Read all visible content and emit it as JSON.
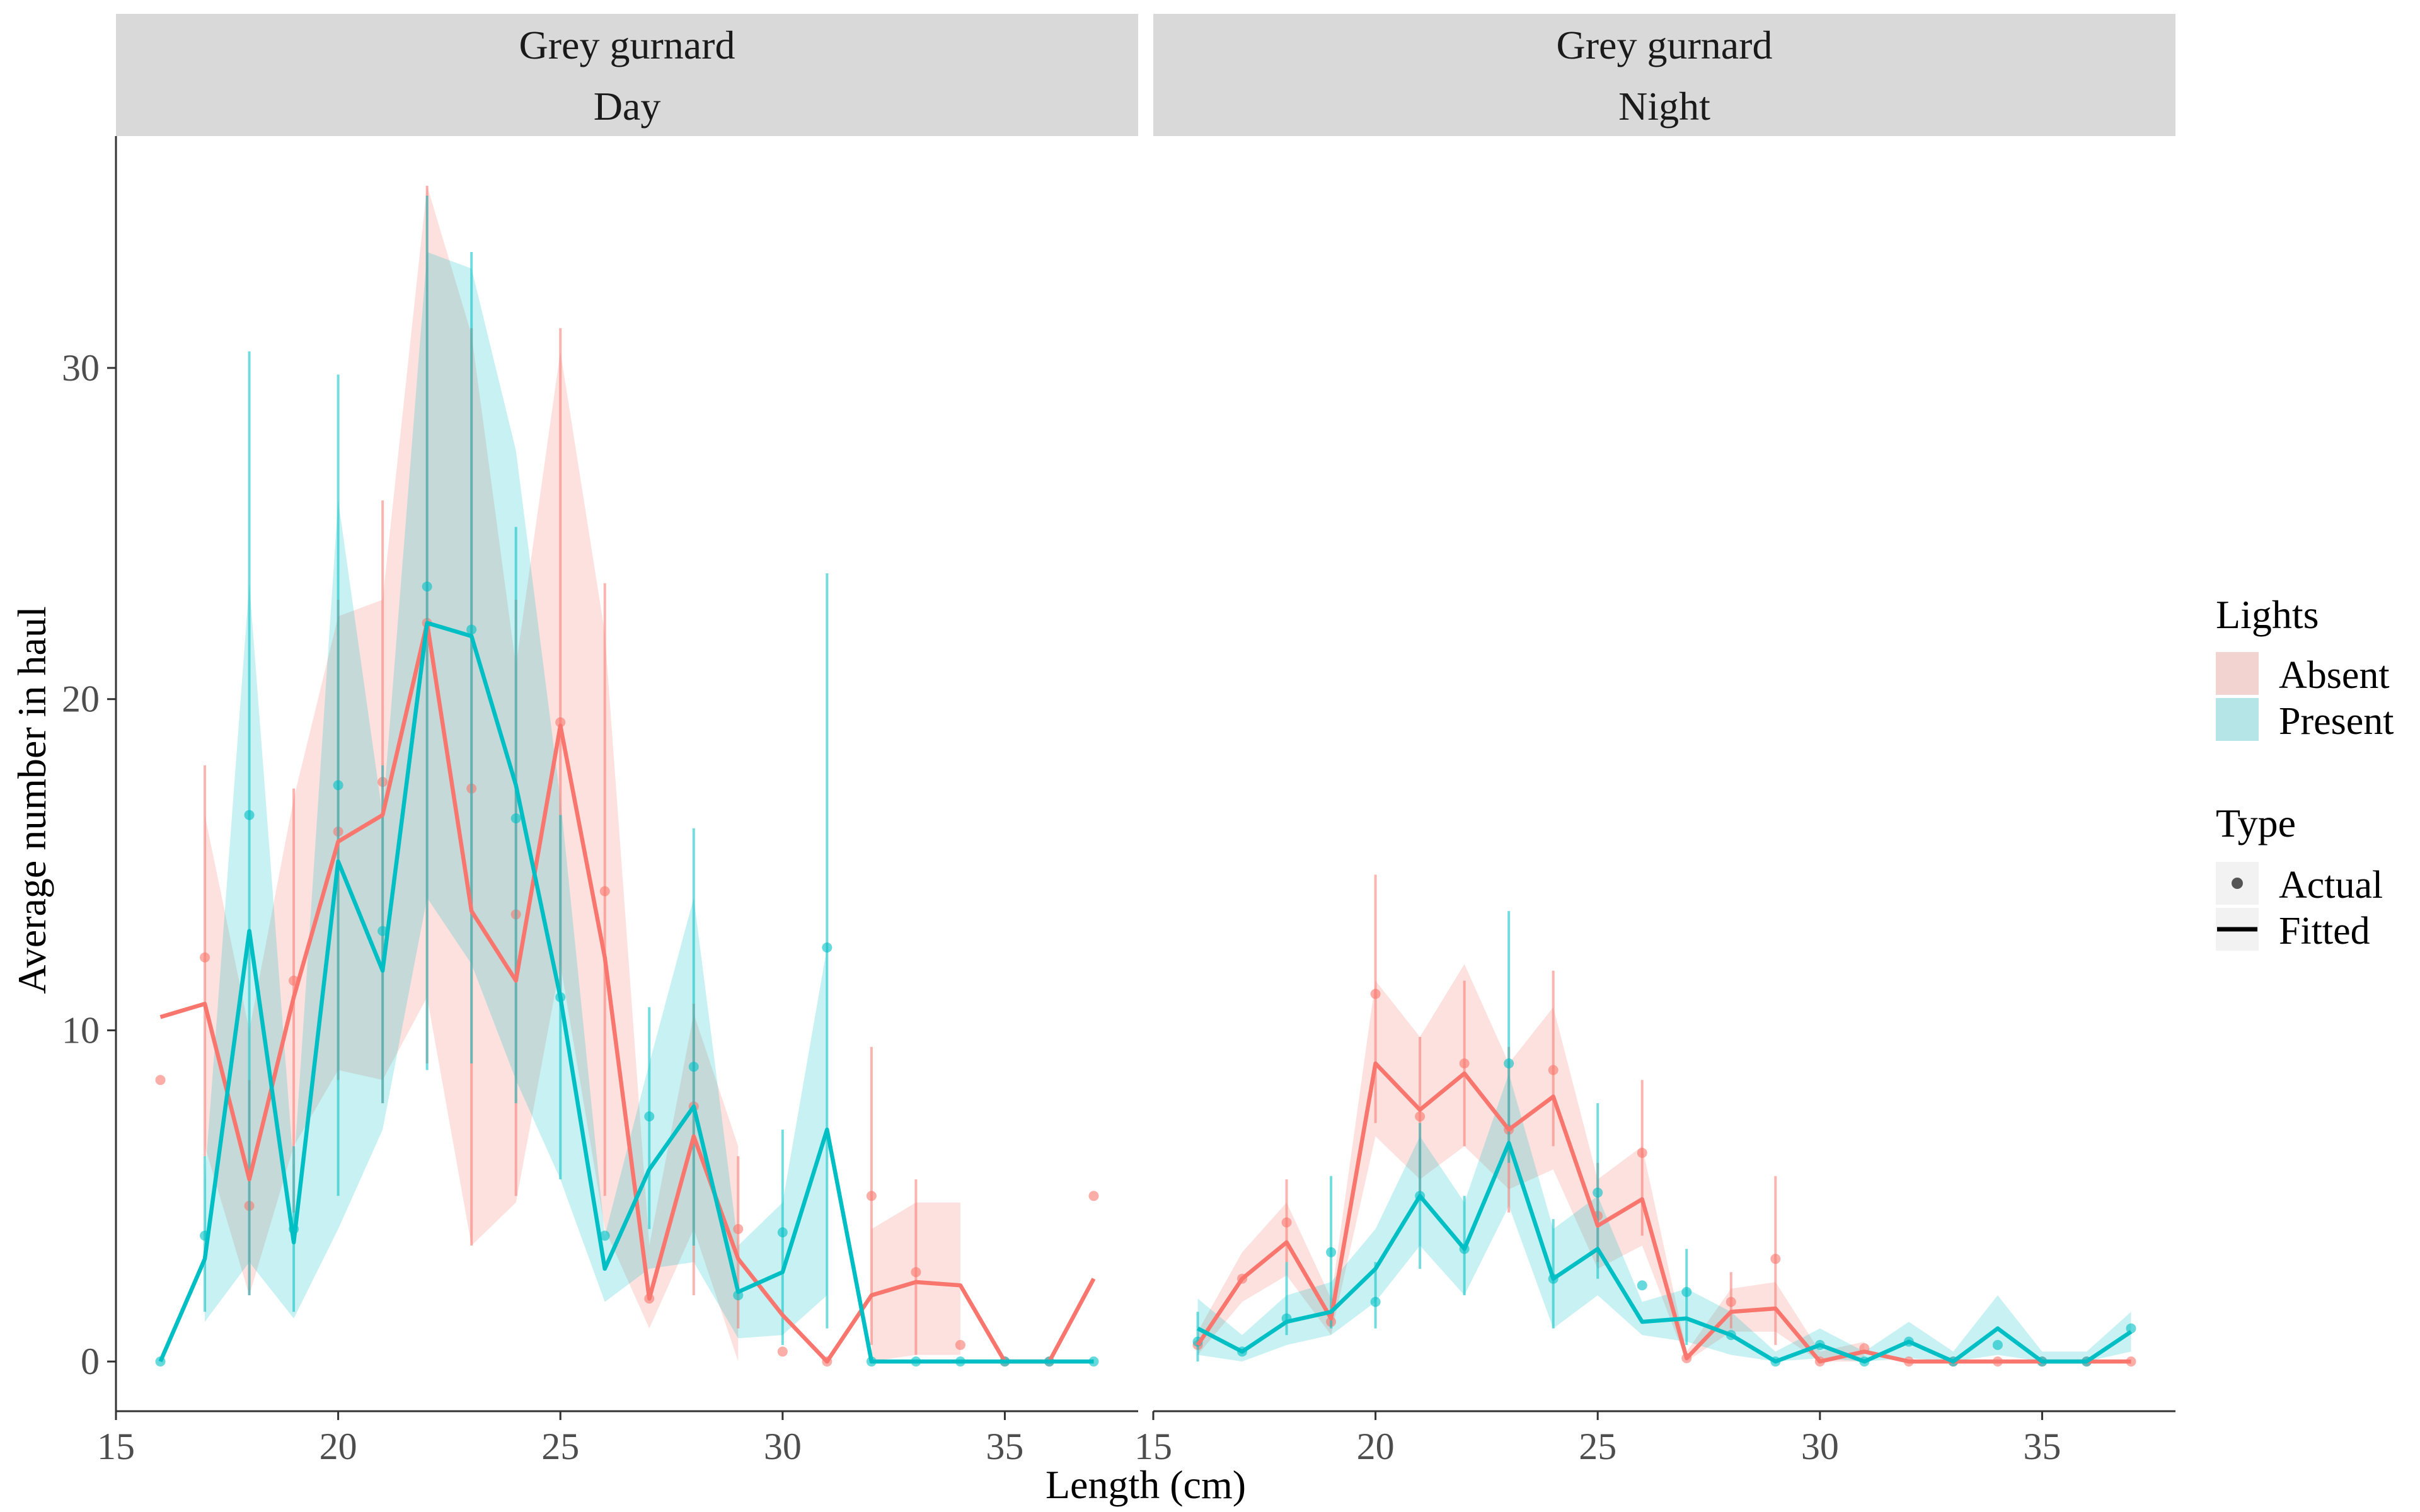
{
  "colors": {
    "absent": "#F8766D",
    "present": "#00BFC4",
    "strip_bg": "#D9D9D9",
    "axis": "#333333"
  },
  "chart_data": {
    "type": "line",
    "xlabel": "Length (cm)",
    "ylabel": "Average number in haul",
    "xlim": [
      15,
      38
    ],
    "ylim": [
      -1.5,
      37
    ],
    "x_ticks": [
      15,
      20,
      25,
      30,
      35
    ],
    "y_ticks": [
      0,
      10,
      20,
      30
    ],
    "grid": false,
    "legend_position": "right",
    "legend": {
      "fill_title": "Lights",
      "fill_items": [
        "Absent",
        "Present"
      ],
      "type_title": "Type",
      "type_items": [
        "Actual",
        "Fitted"
      ]
    },
    "panels": [
      {
        "strip_line1": "Grey gurnard",
        "strip_line2": "Day",
        "series": [
          {
            "name": "Absent",
            "x": [
              16,
              17,
              18,
              19,
              20,
              21,
              22,
              23,
              24,
              25,
              26,
              27,
              28,
              29,
              30,
              31,
              32,
              33,
              34,
              35,
              36,
              37
            ],
            "fitted": [
              10.4,
              10.8,
              5.5,
              11.0,
              15.7,
              16.5,
              22.3,
              13.6,
              11.5,
              19.2,
              12.2,
              1.9,
              6.8,
              3.1,
              1.4,
              0.0,
              2.0,
              2.4,
              2.3,
              0.0,
              0.0,
              2.5
            ],
            "lower": [
              null,
              6.5,
              2.0,
              6.5,
              8.8,
              8.5,
              11.0,
              3.5,
              4.8,
              12.0,
              4.0,
              1.0,
              4.0,
              0.0,
              null,
              null,
              0.0,
              0.2,
              0.2,
              null,
              null,
              null
            ],
            "upper": [
              null,
              16.5,
              10.0,
              17.0,
              22.5,
              23.0,
              35.5,
              31.0,
              21.0,
              30.5,
              22.0,
              3.5,
              10.5,
              6.5,
              null,
              null,
              4.0,
              4.8,
              4.8,
              null,
              null,
              null
            ],
            "actual": [
              8.5,
              12.2,
              4.7,
              11.5,
              16.0,
              17.5,
              22.3,
              17.3,
              13.5,
              19.3,
              14.2,
              1.9,
              7.7,
              4.0,
              0.3,
              0.0,
              5.0,
              2.7,
              0.5,
              0.0,
              0.0,
              5.0
            ],
            "err_lo": [
              null,
              6.2,
              2.0,
              4.5,
              8.5,
              7.8,
              9.0,
              3.5,
              5.0,
              11.0,
              5.0,
              null,
              2.0,
              1.0,
              null,
              null,
              0.5,
              0.2,
              null,
              null,
              null,
              null
            ],
            "err_hi": [
              null,
              18.0,
              8.5,
              17.3,
              23.0,
              26.0,
              35.5,
              31.2,
              23.0,
              31.2,
              23.5,
              null,
              10.8,
              6.2,
              null,
              null,
              9.5,
              5.5,
              null,
              null,
              null,
              null
            ]
          },
          {
            "name": "Present",
            "x": [
              16,
              17,
              18,
              19,
              20,
              21,
              22,
              23,
              24,
              25,
              26,
              27,
              28,
              29,
              30,
              31,
              32,
              33,
              34,
              35,
              36,
              37
            ],
            "fitted": [
              0.0,
              3.1,
              13.0,
              3.6,
              15.1,
              11.8,
              22.3,
              21.9,
              17.4,
              11.0,
              2.8,
              5.8,
              7.7,
              2.1,
              2.7,
              7.0,
              0.0,
              0.0,
              0.0,
              0.0,
              0.0,
              0.0
            ],
            "lower": [
              null,
              1.2,
              3.0,
              1.3,
              4.0,
              7.0,
              14.0,
              12.0,
              8.5,
              5.5,
              1.8,
              2.8,
              3.0,
              0.7,
              0.8,
              2.0,
              null,
              null,
              null,
              null,
              null,
              null
            ],
            "upper": [
              null,
              5.5,
              23.5,
              5.8,
              26.0,
              16.5,
              33.5,
              33.0,
              27.5,
              17.0,
              3.8,
              9.0,
              14.0,
              3.5,
              4.8,
              12.5,
              null,
              null,
              null,
              null,
              null,
              null
            ],
            "actual": [
              0.0,
              3.8,
              16.5,
              4.0,
              17.4,
              13.0,
              23.4,
              22.1,
              16.4,
              11.0,
              3.8,
              7.4,
              8.9,
              2.0,
              3.9,
              12.5,
              0.0,
              0.0,
              0.0,
              0.0,
              0.0,
              0.0
            ],
            "err_lo": [
              null,
              1.5,
              2.0,
              1.5,
              5.0,
              7.8,
              8.8,
              9.0,
              7.8,
              5.5,
              null,
              4.0,
              3.5,
              null,
              0.5,
              1.0,
              null,
              null,
              null,
              null,
              null,
              null
            ],
            "err_hi": [
              null,
              6.2,
              30.5,
              6.5,
              29.8,
              18.0,
              35.2,
              33.5,
              25.2,
              16.5,
              null,
              10.7,
              16.1,
              null,
              7.0,
              23.8,
              null,
              null,
              null,
              null,
              null,
              null
            ]
          }
        ]
      },
      {
        "strip_line1": "Grey gurnard",
        "strip_line2": "Night",
        "series": [
          {
            "name": "Absent",
            "x": [
              16,
              17,
              18,
              19,
              20,
              21,
              22,
              23,
              24,
              25,
              26,
              27,
              28,
              29,
              30,
              31,
              32,
              33,
              34,
              35,
              36,
              37
            ],
            "fitted": [
              0.5,
              2.5,
              3.6,
              1.3,
              9.0,
              7.6,
              8.7,
              7.0,
              8.0,
              4.1,
              4.9,
              0.1,
              1.5,
              1.6,
              0.0,
              0.3,
              0.0,
              0.0,
              0.0,
              0.0,
              0.0,
              0.0
            ],
            "lower": [
              0.2,
              1.8,
              2.6,
              0.8,
              6.8,
              5.5,
              6.5,
              5.2,
              5.8,
              2.8,
              3.5,
              0.0,
              0.9,
              0.9,
              0.0,
              0.0,
              null,
              null,
              null,
              null,
              null,
              null
            ],
            "upper": [
              0.9,
              3.3,
              4.8,
              1.9,
              11.5,
              9.8,
              12.0,
              9.0,
              10.7,
              5.5,
              6.5,
              0.3,
              2.2,
              2.4,
              0.3,
              0.6,
              null,
              null,
              null,
              null,
              null,
              null
            ],
            "actual": [
              0.5,
              2.5,
              4.2,
              1.2,
              11.1,
              7.4,
              9.0,
              7.0,
              8.8,
              4.4,
              6.3,
              0.1,
              1.8,
              3.1,
              0.0,
              0.4,
              0.0,
              0.0,
              0.0,
              0.0,
              0.0,
              0.0
            ],
            "err_lo": [
              null,
              null,
              3.0,
              null,
              7.2,
              5.0,
              6.5,
              4.5,
              6.5,
              3.0,
              3.8,
              null,
              1.0,
              0.5,
              null,
              null,
              null,
              null,
              null,
              null,
              null,
              null
            ],
            "err_hi": [
              null,
              null,
              5.5,
              null,
              14.7,
              9.8,
              11.5,
              9.5,
              11.8,
              6.0,
              8.5,
              null,
              2.7,
              5.6,
              null,
              null,
              null,
              null,
              null,
              null,
              null,
              null
            ]
          },
          {
            "name": "Present",
            "x": [
              16,
              17,
              18,
              19,
              20,
              21,
              22,
              23,
              24,
              25,
              26,
              27,
              28,
              29,
              30,
              31,
              32,
              33,
              34,
              35,
              36,
              37
            ],
            "fitted": [
              1.0,
              0.3,
              1.2,
              1.5,
              2.8,
              5.0,
              3.4,
              6.6,
              2.5,
              3.4,
              1.2,
              1.3,
              0.8,
              0.0,
              0.5,
              0.0,
              0.6,
              0.0,
              1.0,
              0.0,
              0.0,
              0.9
            ],
            "lower": [
              0.2,
              0.0,
              0.5,
              0.8,
              1.8,
              3.5,
              2.0,
              4.7,
              1.0,
              2.0,
              0.8,
              0.6,
              0.2,
              0.0,
              0.1,
              0.0,
              0.1,
              0.0,
              0.2,
              0.0,
              0.0,
              0.3
            ],
            "upper": [
              1.9,
              0.8,
              2.0,
              2.4,
              4.0,
              6.8,
              4.8,
              8.7,
              4.0,
              5.0,
              1.8,
              2.2,
              1.5,
              0.3,
              1.0,
              0.3,
              1.2,
              0.3,
              2.0,
              0.3,
              0.3,
              1.5
            ],
            "actual": [
              0.6,
              0.3,
              1.3,
              3.3,
              1.8,
              5.0,
              3.4,
              9.0,
              2.5,
              5.1,
              2.3,
              2.1,
              0.8,
              0.0,
              0.5,
              0.0,
              0.6,
              0.0,
              0.5,
              0.0,
              0.0,
              1.0
            ],
            "err_lo": [
              0.0,
              null,
              0.8,
              1.0,
              1.0,
              2.8,
              2.0,
              6.0,
              1.0,
              2.5,
              null,
              0.5,
              null,
              null,
              null,
              null,
              null,
              null,
              null,
              null,
              null,
              null
            ],
            "err_hi": [
              1.5,
              null,
              3.0,
              5.6,
              3.0,
              7.2,
              5.0,
              13.6,
              4.3,
              7.8,
              null,
              3.4,
              null,
              null,
              null,
              null,
              null,
              null,
              null,
              null,
              null,
              null
            ]
          }
        ]
      }
    ]
  }
}
